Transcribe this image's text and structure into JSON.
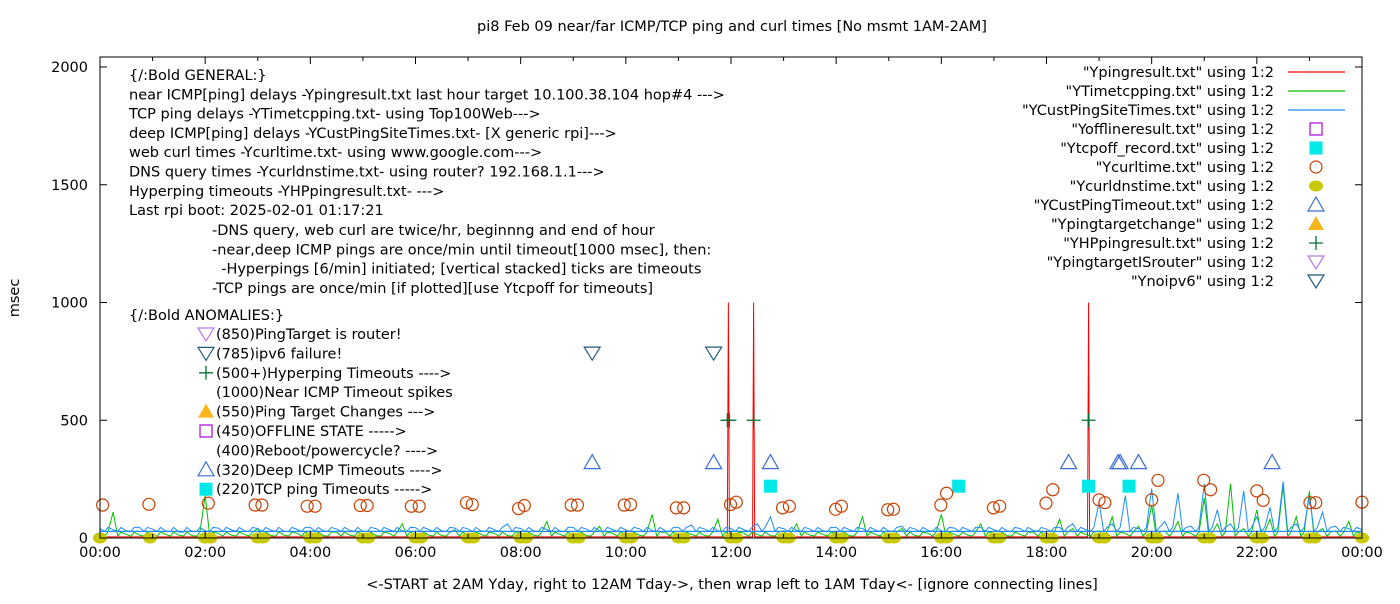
{
  "chart_data": {
    "type": "line",
    "title": "pi8 Feb 09  near/far ICMP/TCP ping and curl times [No msmt 1AM-2AM]",
    "xlabel": "<-START at 2AM Yday, right to 12AM Tday->, then wrap left to 1AM Tday<- [ignore connecting lines]",
    "ylabel": "msec",
    "xlim": [
      0,
      24
    ],
    "ylim": [
      0,
      2000
    ],
    "x_ticks": [
      "00:00",
      "02:00",
      "04:00",
      "06:00",
      "08:00",
      "10:00",
      "12:00",
      "14:00",
      "16:00",
      "18:00",
      "20:00",
      "22:00",
      "00:00"
    ],
    "y_ticks": [
      "0",
      "500",
      "1000",
      "1500",
      "2000"
    ],
    "grid": false,
    "legend_position": "top-right",
    "notes_general": [
      "{/:Bold GENERAL:}",
      "near ICMP[ping] delays -Ypingresult.txt last hour target 10.100.38.104 hop#4 --->",
      "TCP ping delays -YTimetcpping.txt- using Top100Web--->",
      "deep ICMP[ping] delays -YCustPingSiteTimes.txt- [X generic rpi]--->",
      "web curl times -Ycurltime.txt- using www.google.com--->",
      "DNS query times -Ycurldnstime.txt- using router? 192.168.1.1--->",
      "Hyperping timeouts -YHPpingresult.txt- --->",
      "Last rpi boot: 2025-02-01 01:17:21"
    ],
    "notes_indented": [
      "-DNS query, web curl are twice/hr, beginnng and end of hour",
      "-near,deep ICMP pings are once/min until timeout[1000 msec], then:",
      "  -Hyperpings [6/min] initiated; [vertical stacked] ticks are timeouts",
      "-TCP pings are once/min [if plotted][use Ytcpoff for timeouts]"
    ],
    "anomalies_title": "{/:Bold ANOMALIES:}",
    "anomalies": [
      {
        "icon": "triangle-down-open",
        "color": "#b57bee",
        "label": "(850)PingTarget is router!"
      },
      {
        "icon": "triangle-down-open",
        "color": "#1f5a7a",
        "label": "(785)ipv6 failure!"
      },
      {
        "icon": "plus",
        "color": "#007030",
        "label": "(500+)Hyperping Timeouts ---->"
      },
      {
        "icon": "none",
        "color": "",
        "label": "(1000)Near ICMP Timeout spikes"
      },
      {
        "icon": "triangle-up-filled",
        "color": "#f9b51c",
        "label": "(550)Ping Target Changes --->"
      },
      {
        "icon": "square-open",
        "color": "#b000e0",
        "label": "(450)OFFLINE STATE ----->"
      },
      {
        "icon": "none",
        "color": "",
        "label": "(400)Reboot/powercycle? ---->"
      },
      {
        "icon": "triangle-up-open",
        "color": "#3c6fd6",
        "label": "(320)Deep ICMP Timeouts ---->"
      },
      {
        "icon": "square-filled",
        "color": "#00e8e8",
        "label": "(220)TCP ping Timeouts ----->"
      }
    ],
    "series": [
      {
        "name": "\"Ypingresult.txt\" using 1:2",
        "style": "line",
        "color": "#ff0000",
        "points": [
          [
            0,
            5
          ],
          [
            11.93,
            5
          ],
          [
            11.95,
            1000
          ],
          [
            11.97,
            5
          ],
          [
            12.41,
            5
          ],
          [
            12.43,
            1000
          ],
          [
            12.45,
            5
          ],
          [
            18.78,
            5
          ],
          [
            18.8,
            1000
          ],
          [
            18.82,
            5
          ],
          [
            24,
            5
          ]
        ]
      },
      {
        "name": "\"YTimetcpping.txt\" using 1:2",
        "style": "line",
        "color": "#00c000",
        "x_start": 0,
        "x_step": 0.25,
        "values": [
          20,
          110,
          15,
          12,
          10,
          15,
          12,
          10,
          180,
          20,
          12,
          15,
          40,
          10,
          12,
          20,
          15,
          10,
          25,
          12,
          15,
          10,
          20,
          60,
          15,
          12,
          10,
          35,
          12,
          15,
          20,
          10,
          25,
          12,
          70,
          15,
          12,
          10,
          50,
          20,
          15,
          12,
          100,
          25,
          12,
          15,
          10,
          80,
          12,
          20,
          15,
          10,
          30,
          60,
          12,
          15,
          20,
          10,
          90,
          15,
          12,
          40,
          10,
          20,
          100,
          15,
          12,
          60,
          20,
          10,
          15,
          25,
          12,
          80,
          40,
          15,
          30,
          90,
          20,
          50,
          140,
          30,
          70,
          20,
          170,
          60,
          230,
          40,
          120,
          80,
          220,
          90,
          200,
          40,
          30,
          70,
          20
        ]
      },
      {
        "name": "\"YCustPingSiteTimes.txt\" using 1:2",
        "style": "line",
        "color": "#1e8cff",
        "x_start": 0,
        "x_step": 0.25,
        "values": [
          40,
          35,
          30,
          45,
          38,
          30,
          25,
          28,
          30,
          42,
          35,
          30,
          40,
          33,
          28,
          36,
          45,
          30,
          38,
          32,
          28,
          40,
          35,
          30,
          44,
          36,
          30,
          42,
          38,
          29,
          35,
          60,
          40,
          30,
          35,
          28,
          45,
          38,
          30,
          36,
          34,
          40,
          32,
          30,
          45,
          55,
          38,
          30,
          40,
          35,
          60,
          90,
          40,
          32,
          38,
          30,
          45,
          35,
          40,
          33,
          30,
          50,
          38,
          32,
          30,
          42,
          36,
          45,
          35,
          30,
          40,
          32,
          38,
          45,
          60,
          35,
          150,
          60,
          180,
          40,
          210,
          70,
          190,
          50,
          230,
          120,
          60,
          200,
          90,
          130,
          240,
          60,
          180,
          110,
          50,
          40,
          35
        ]
      },
      {
        "name": "\"Yofflineresult.txt\" using 1:2",
        "style": "square-open",
        "color": "#b000e0",
        "points": []
      },
      {
        "name": "\"Ytcpoff_record.txt\" using 1:2",
        "style": "square-filled",
        "color": "#00e8e8",
        "points": [
          [
            12.75,
            220
          ],
          [
            16.33,
            220
          ],
          [
            18.8,
            220
          ],
          [
            19.57,
            220
          ]
        ]
      },
      {
        "name": "\"Ycurltime.txt\" using 1:2",
        "style": "circle-open",
        "color": "#c84000",
        "points": [
          [
            0.05,
            140
          ],
          [
            0.93,
            143
          ],
          [
            2.06,
            148
          ],
          [
            2.95,
            140
          ],
          [
            3.08,
            140
          ],
          [
            3.94,
            135
          ],
          [
            4.09,
            135
          ],
          [
            4.95,
            138
          ],
          [
            5.08,
            138
          ],
          [
            5.92,
            135
          ],
          [
            6.07,
            135
          ],
          [
            6.97,
            150
          ],
          [
            7.08,
            142
          ],
          [
            7.96,
            125
          ],
          [
            8.07,
            138
          ],
          [
            8.96,
            140
          ],
          [
            9.08,
            140
          ],
          [
            9.97,
            140
          ],
          [
            10.09,
            142
          ],
          [
            10.96,
            128
          ],
          [
            11.1,
            128
          ],
          [
            11.99,
            142
          ],
          [
            12.1,
            152
          ],
          [
            12.98,
            128
          ],
          [
            13.11,
            135
          ],
          [
            13.99,
            122
          ],
          [
            14.1,
            135
          ],
          [
            14.98,
            120
          ],
          [
            15.09,
            122
          ],
          [
            15.99,
            140
          ],
          [
            16.1,
            190
          ],
          [
            16.99,
            128
          ],
          [
            17.11,
            135
          ],
          [
            17.99,
            148
          ],
          [
            18.12,
            205
          ],
          [
            19.0,
            162
          ],
          [
            19.11,
            150
          ],
          [
            20.0,
            162
          ],
          [
            20.12,
            245
          ],
          [
            20.99,
            245
          ],
          [
            21.12,
            205
          ],
          [
            22.0,
            200
          ],
          [
            22.12,
            160
          ],
          [
            23.01,
            150
          ],
          [
            23.12,
            150
          ],
          [
            24.0,
            152
          ]
        ]
      },
      {
        "name": "\"Ycurldnstime.txt\" using 1:2",
        "style": "dot-filled",
        "color": "#c8c800",
        "points": [
          [
            0,
            0
          ],
          [
            0.95,
            0
          ],
          [
            2.0,
            0
          ],
          [
            2.1,
            0
          ],
          [
            3.0,
            0
          ],
          [
            3.1,
            0
          ],
          [
            4.0,
            0
          ],
          [
            4.1,
            0
          ],
          [
            5.0,
            0
          ],
          [
            5.1,
            0
          ],
          [
            6.0,
            0
          ],
          [
            6.1,
            0
          ],
          [
            7.0,
            0
          ],
          [
            7.1,
            0
          ],
          [
            8.0,
            0
          ],
          [
            8.1,
            0
          ],
          [
            9.0,
            0
          ],
          [
            9.1,
            0
          ],
          [
            10.0,
            0
          ],
          [
            10.1,
            0
          ],
          [
            11.0,
            0
          ],
          [
            11.1,
            0
          ],
          [
            12.0,
            0
          ],
          [
            12.1,
            0
          ],
          [
            13.0,
            0
          ],
          [
            13.1,
            0
          ],
          [
            14.0,
            0
          ],
          [
            14.1,
            0
          ],
          [
            15.0,
            0
          ],
          [
            15.1,
            0
          ],
          [
            16.0,
            0
          ],
          [
            16.1,
            0
          ],
          [
            17.0,
            0
          ],
          [
            17.1,
            0
          ],
          [
            18.0,
            0
          ],
          [
            18.1,
            0
          ],
          [
            19.0,
            0
          ],
          [
            19.1,
            0
          ],
          [
            20.0,
            0
          ],
          [
            20.1,
            0
          ],
          [
            21.0,
            0
          ],
          [
            21.1,
            0
          ],
          [
            22.0,
            0
          ],
          [
            22.1,
            0
          ],
          [
            23.0,
            0
          ],
          [
            23.1,
            0
          ],
          [
            24.0,
            0
          ]
        ]
      },
      {
        "name": "\"YCustPingTimeout.txt\" using 1:2",
        "style": "triangle-up-open",
        "color": "#3c6fd6",
        "points": [
          [
            9.36,
            320
          ],
          [
            11.67,
            320
          ],
          [
            12.75,
            320
          ],
          [
            18.42,
            320
          ],
          [
            19.36,
            320
          ],
          [
            19.4,
            320
          ],
          [
            19.75,
            320
          ],
          [
            22.29,
            320
          ]
        ]
      },
      {
        "name": "\"Ypingtargetchange\" using 1:2",
        "style": "triangle-up-filled",
        "color": "#f9b51c",
        "points": []
      },
      {
        "name": "\"YHPpingresult.txt\" using 1:2",
        "style": "plus",
        "color": "#007030",
        "points": [
          [
            11.93,
            500
          ],
          [
            11.97,
            500
          ],
          [
            12.43,
            500
          ],
          [
            18.8,
            500
          ]
        ]
      },
      {
        "name": "\"YpingtargetISrouter\" using 1:2",
        "style": "triangle-down-open",
        "color": "#b57bee",
        "points": []
      },
      {
        "name": "\"Ynoipv6\" using 1:2",
        "style": "triangle-down-open",
        "color": "#1f5a7a",
        "points": [
          [
            9.36,
            785
          ],
          [
            11.67,
            785
          ]
        ]
      }
    ]
  }
}
